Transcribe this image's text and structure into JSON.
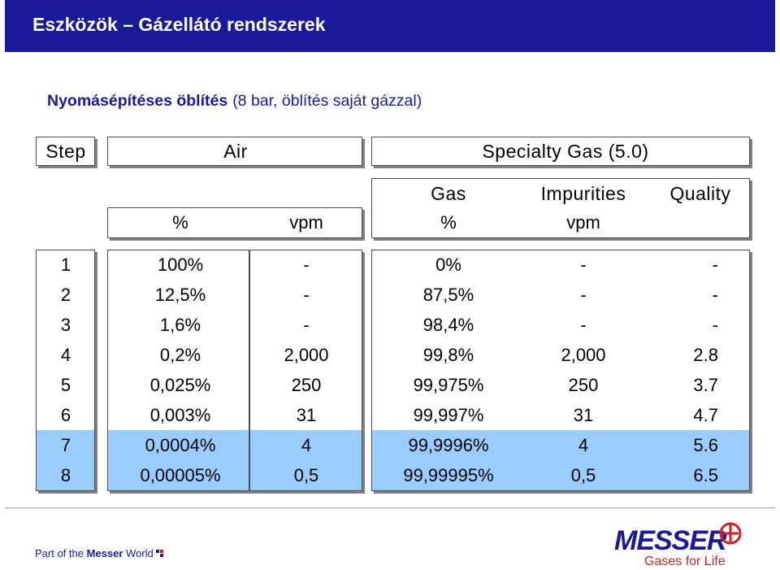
{
  "header": {
    "title": "Eszközök – Gázellátó rendszerek"
  },
  "subtitle": {
    "bold": "Nyomásépítéses öblítés",
    "normal": "(8 bar, öblítés saját gázzal)"
  },
  "table": {
    "step_label": "Step",
    "air_label": "Air",
    "specialty_label": "Specialty Gas (5.0)",
    "gas_label": "Gas",
    "impurities_label": "Impurities",
    "quality_label": "Quality",
    "air_pct_label": "%",
    "air_vpm_label": "vpm",
    "gas_pct_label": "%",
    "imp_vpm_label": "vpm",
    "rows": [
      {
        "step": "1",
        "air_pct": "100%",
        "air_vpm": "-",
        "gas_pct": "0%",
        "imp_vpm": "-",
        "quality": "-"
      },
      {
        "step": "2",
        "air_pct": "12,5%",
        "air_vpm": "-",
        "gas_pct": "87,5%",
        "imp_vpm": "-",
        "quality": "-"
      },
      {
        "step": "3",
        "air_pct": "1,6%",
        "air_vpm": "-",
        "gas_pct": "98,4%",
        "imp_vpm": "-",
        "quality": "-"
      },
      {
        "step": "4",
        "air_pct": "0,2%",
        "air_vpm": "2,000",
        "gas_pct": "99,8%",
        "imp_vpm": "2,000",
        "quality": "2.8"
      },
      {
        "step": "5",
        "air_pct": "0,025%",
        "air_vpm": "250",
        "gas_pct": "99,975%",
        "imp_vpm": "250",
        "quality": "3.7"
      },
      {
        "step": "6",
        "air_pct": "0,003%",
        "air_vpm": "31",
        "gas_pct": "99,997%",
        "imp_vpm": "31",
        "quality": "4.7"
      },
      {
        "step": "7",
        "air_pct": "0,0004%",
        "air_vpm": "4",
        "gas_pct": "99,9996%",
        "imp_vpm": "4",
        "quality": "5.6"
      },
      {
        "step": "8",
        "air_pct": "0,00005%",
        "air_vpm": "0,5",
        "gas_pct": "99,99995%",
        "imp_vpm": "0,5",
        "quality": "6.5"
      }
    ]
  },
  "footer": {
    "left_prefix": "Part of the",
    "left_bold": "Messer",
    "left_suffix": "World",
    "logo_word": "MESSER",
    "logo_tagline": "Gases for Life"
  },
  "colors": {
    "title_bar": "#1a1a99",
    "highlight_rows": "#99ccff",
    "logo_red": "#cc2222"
  }
}
